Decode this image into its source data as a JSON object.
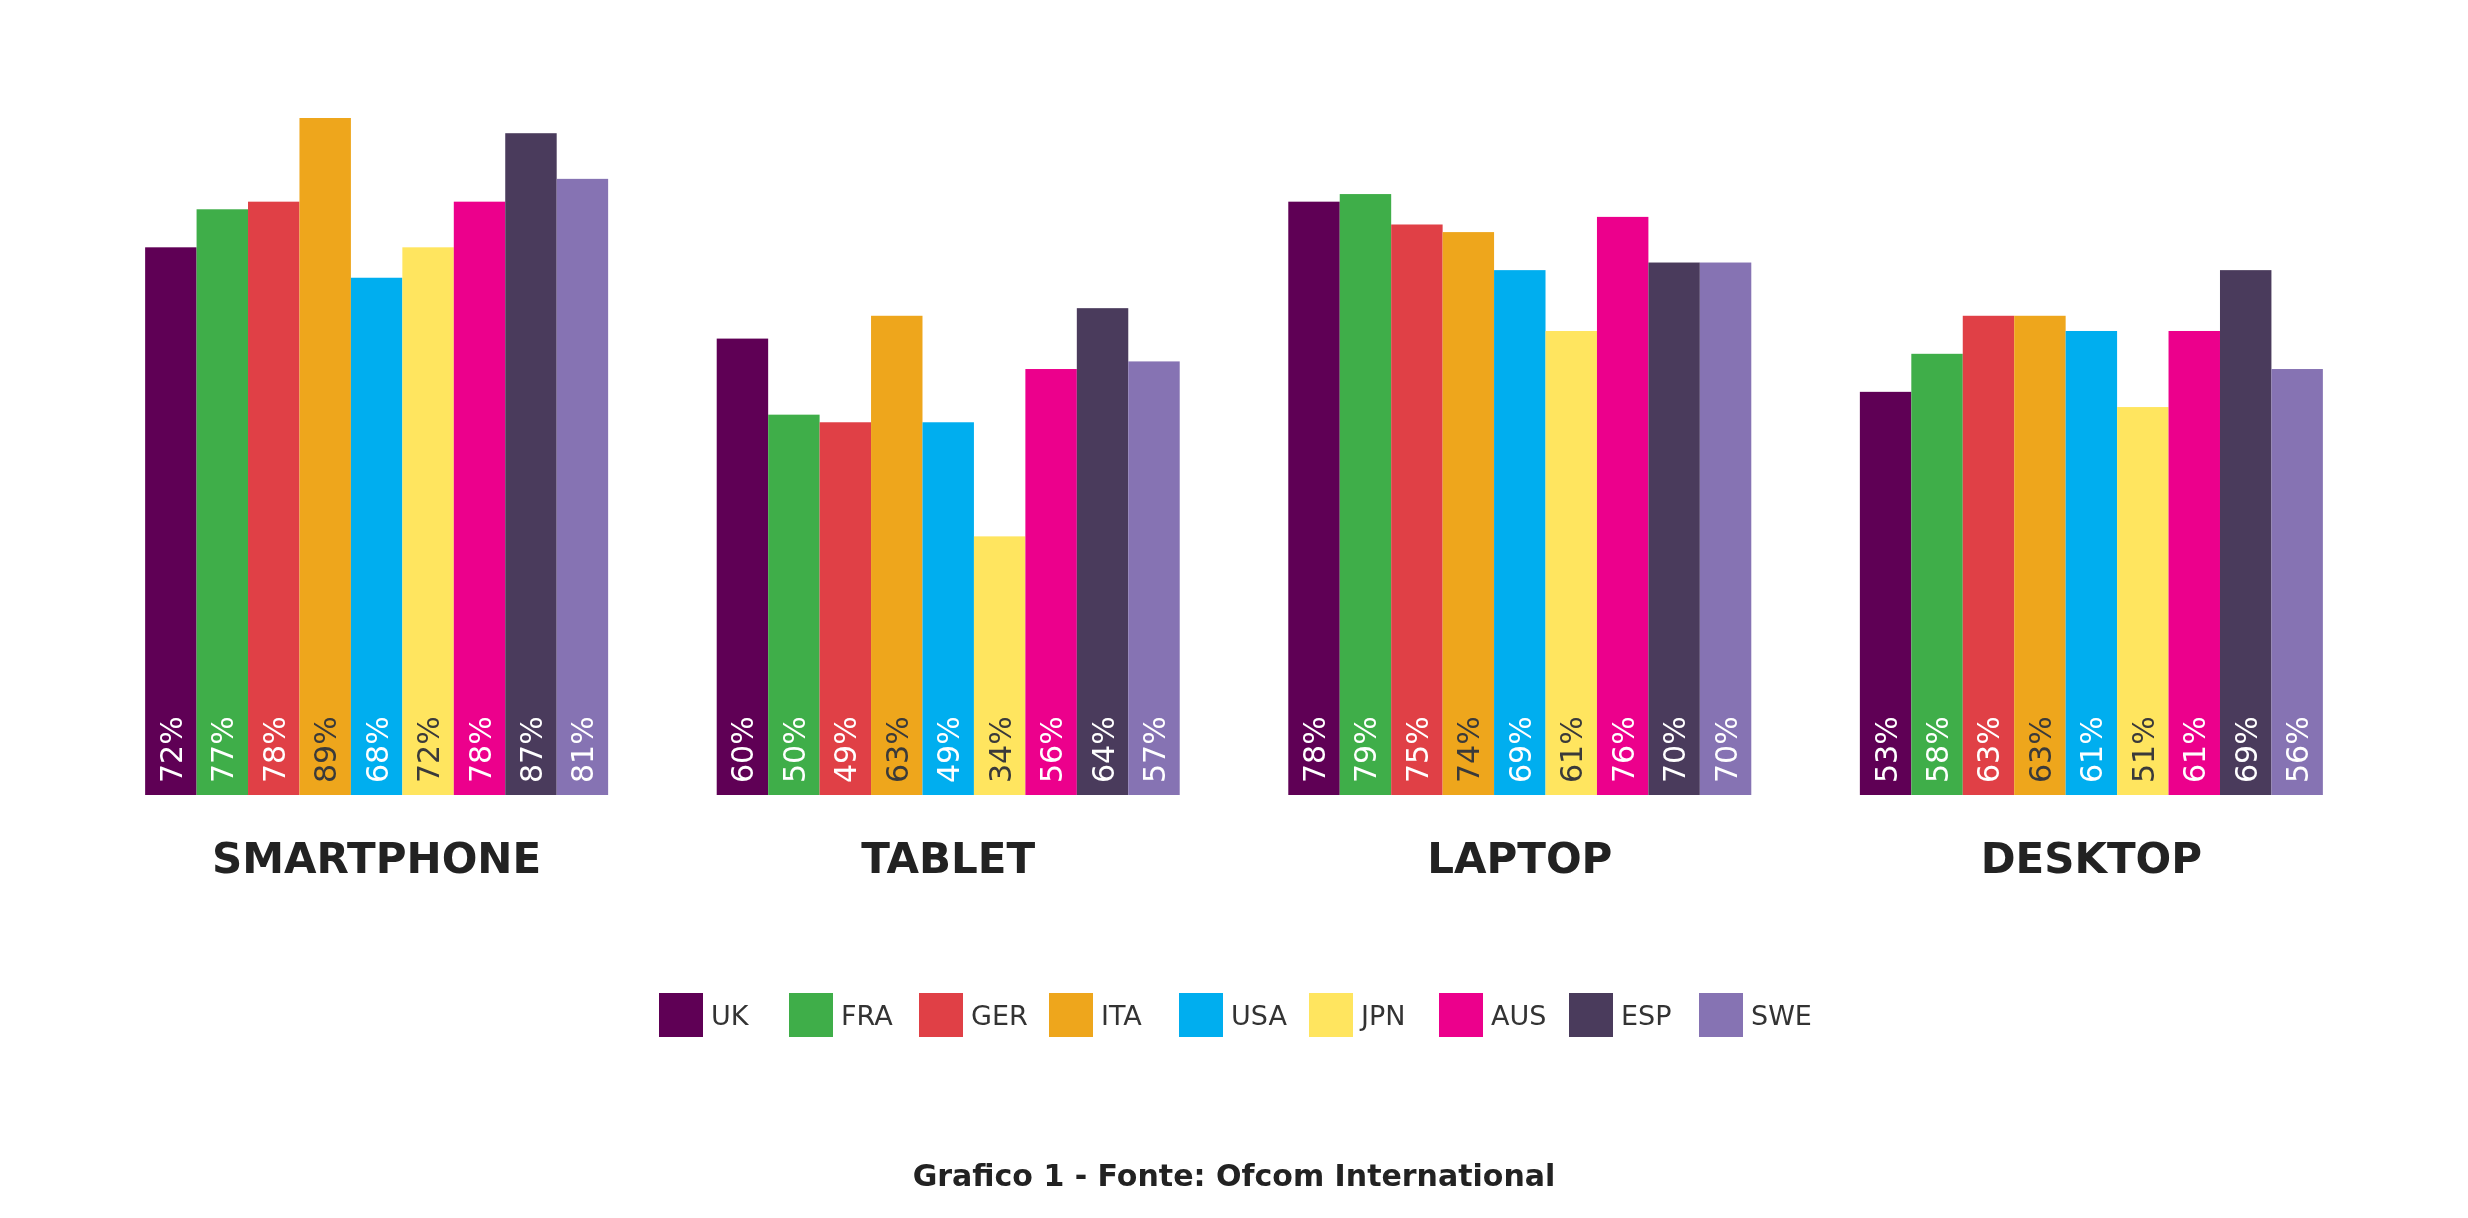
{
  "chart_data": {
    "type": "bar",
    "categories": [
      "SMARTPHONE",
      "TABLET",
      "LAPTOP",
      "DESKTOP"
    ],
    "legend": "bottom",
    "tick_labels": "x",
    "series": [
      {
        "name": "UK",
        "color": "#5f0055",
        "values": [
          72,
          60,
          78,
          53
        ],
        "value_labels": [
          "72%",
          "60%",
          "78%",
          "53%"
        ]
      },
      {
        "name": "FRA",
        "color": "#3fae49",
        "values": [
          77,
          50,
          79,
          58
        ],
        "value_labels": [
          "77%",
          "50%",
          "79%",
          "58%"
        ]
      },
      {
        "name": "GER",
        "color": "#e04046",
        "values": [
          78,
          49,
          75,
          63
        ],
        "value_labels": [
          "78%",
          "49%",
          "75%",
          "63%"
        ]
      },
      {
        "name": "ITA",
        "color": "#eea61c",
        "values": [
          89,
          63,
          74,
          63
        ],
        "value_labels": [
          "89%",
          "63%",
          "74%",
          "63%"
        ]
      },
      {
        "name": "USA",
        "color": "#00aeef",
        "values": [
          68,
          49,
          69,
          61
        ],
        "value_labels": [
          "68%",
          "49%",
          "69%",
          "61%"
        ]
      },
      {
        "name": "JPN",
        "color": "#ffe55f",
        "values": [
          72,
          34,
          61,
          51
        ],
        "value_labels": [
          "72%",
          "34%",
          "61%",
          "51%"
        ]
      },
      {
        "name": "AUS",
        "color": "#ec008c",
        "values": [
          78,
          56,
          76,
          61
        ],
        "value_labels": [
          "78%",
          "56%",
          "76%",
          "61%"
        ]
      },
      {
        "name": "ESP",
        "color": "#4a3b5c",
        "values": [
          87,
          64,
          70,
          69
        ],
        "value_labels": [
          "87%",
          "64%",
          "70%",
          "69%"
        ]
      },
      {
        "name": "SWE",
        "color": "#8673b3",
        "values": [
          81,
          57,
          70,
          56
        ],
        "value_labels": [
          "81%",
          "57%",
          "70%",
          "56%"
        ]
      }
    ],
    "annotations": [
      "Grafico 1 - Fonte: Ofcom International"
    ]
  }
}
